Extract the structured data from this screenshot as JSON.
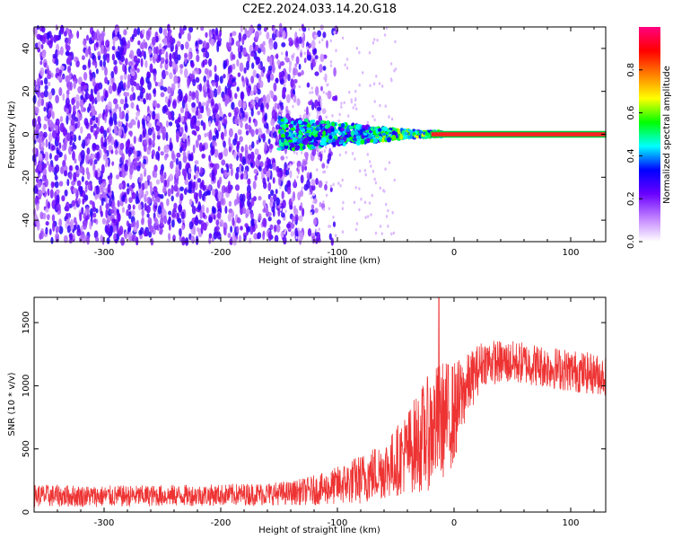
{
  "title": "C2E2.2024.033.14.20.G18",
  "chart_data": [
    {
      "type": "heatmap",
      "xlabel": "Height of straight line (km)",
      "ylabel": "Frequency (Hz)",
      "xlim": [
        -360,
        130
      ],
      "ylim": [
        -50,
        50
      ],
      "xticks": [
        -300,
        -200,
        -100,
        0,
        100
      ],
      "yticks": [
        -40,
        -20,
        0,
        20,
        40
      ],
      "carrier_line": {
        "y": 0,
        "x_from": -20,
        "x_to": 130
      },
      "colorbar": {
        "label": "Normalized spectral amplitude",
        "range": [
          0.0,
          1.0
        ],
        "ticks": [
          0.0,
          0.2,
          0.4,
          0.6,
          0.8
        ],
        "tick_labels": [
          "0.0",
          "0.2",
          "0.4",
          "0.6",
          "0.8"
        ],
        "colors": [
          "#ffffff",
          "#c080ff",
          "#6a00ff",
          "#0000ff",
          "#00ffff",
          "#00ff00",
          "#ffff00",
          "#ff8000",
          "#ff0000",
          "#ff0080"
        ]
      }
    },
    {
      "type": "line",
      "xlabel": "Height of straight line (km)",
      "ylabel": "SNR (10 * v/v)",
      "xlim": [
        -360,
        130
      ],
      "ylim": [
        0,
        1700
      ],
      "xticks": [
        -300,
        -200,
        -100,
        0,
        100
      ],
      "yticks": [
        0,
        500,
        1000,
        1500
      ],
      "line_color": "#ee3333",
      "profile": [
        {
          "x": -360,
          "mean": 130,
          "spread": 90
        },
        {
          "x": -300,
          "mean": 125,
          "spread": 85
        },
        {
          "x": -200,
          "mean": 135,
          "spread": 85
        },
        {
          "x": -140,
          "mean": 150,
          "spread": 95
        },
        {
          "x": -110,
          "mean": 185,
          "spread": 130
        },
        {
          "x": -80,
          "mean": 260,
          "spread": 200
        },
        {
          "x": -55,
          "mean": 360,
          "spread": 250
        },
        {
          "x": -40,
          "mean": 480,
          "spread": 330
        },
        {
          "x": -25,
          "mean": 600,
          "spread": 450
        },
        {
          "x": -12,
          "mean": 720,
          "spread": 480
        },
        {
          "x": 0,
          "mean": 780,
          "spread": 420
        },
        {
          "x": 10,
          "mean": 980,
          "spread": 260
        },
        {
          "x": 25,
          "mean": 1190,
          "spread": 180
        },
        {
          "x": 60,
          "mean": 1180,
          "spread": 170
        },
        {
          "x": 100,
          "mean": 1120,
          "spread": 170
        },
        {
          "x": 130,
          "mean": 1080,
          "spread": 160
        }
      ],
      "peak": {
        "x": -13,
        "y": 1700
      }
    }
  ]
}
